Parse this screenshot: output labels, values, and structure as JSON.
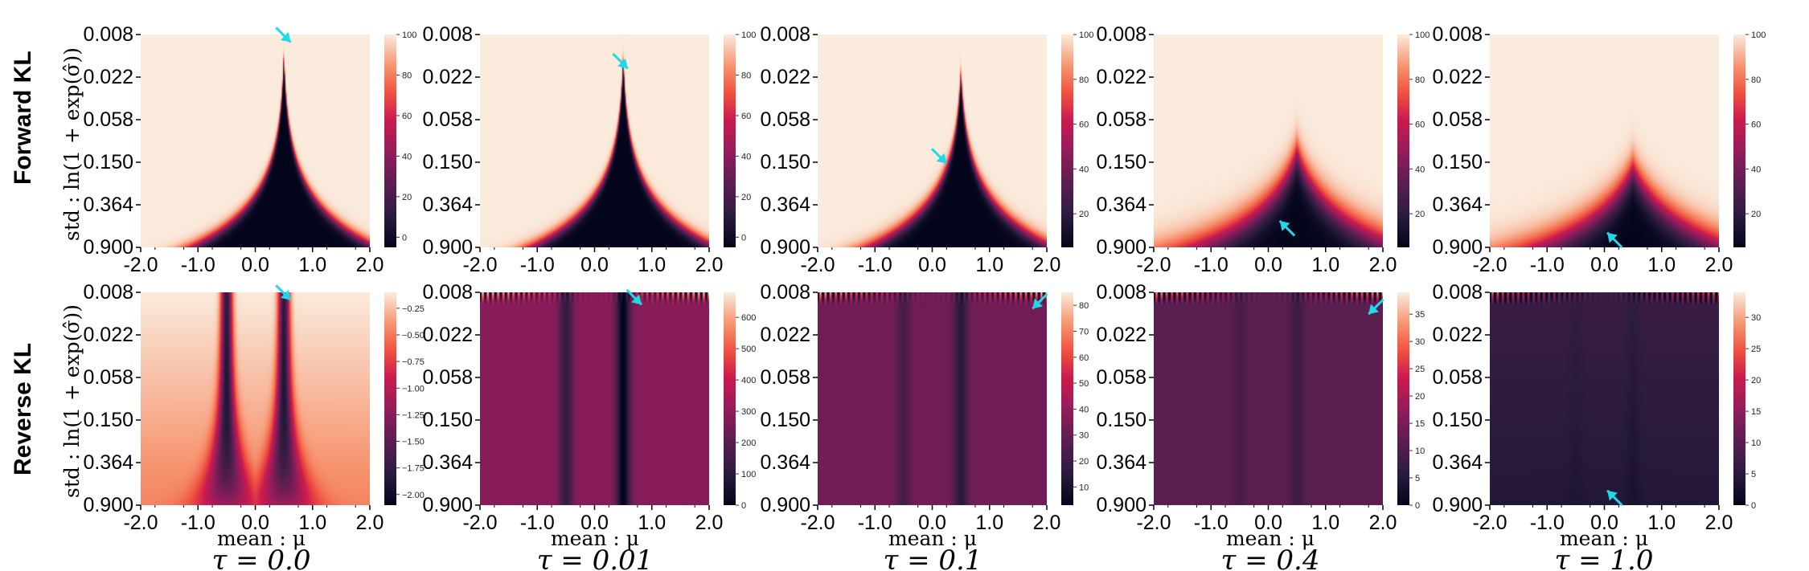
{
  "row_labels": [
    "Forward KL",
    "Reverse KL"
  ],
  "y_axis_label": "std : ln(1 + exp(σ̂))",
  "x_axis_label": "mean : μ",
  "tau_labels": [
    "τ = 0.0",
    "τ = 0.01",
    "τ = 0.1",
    "τ = 0.4",
    "τ = 1.0"
  ],
  "colors": {
    "arrow": "#21d8e8",
    "cmap_low": "#03051a",
    "cmap_high": "#faebdd"
  },
  "chart_data": {
    "type": "heatmap",
    "x_ticks": [
      "-2.0",
      "-1.0",
      "0.0",
      "1.0",
      "2.0"
    ],
    "x_range": [
      -2.0,
      2.0
    ],
    "y_ticks": [
      "0.008",
      "0.022",
      "0.058",
      "0.150",
      "0.364",
      "0.900"
    ],
    "y_range": [
      0.008,
      0.9
    ],
    "y_scale": "log",
    "panels": [
      {
        "row": 0,
        "col": 0,
        "kind": "forward",
        "tau": 0.0,
        "colorbar_ticks": [
          "0",
          "20",
          "40",
          "60",
          "80",
          "100"
        ],
        "colorbar_range": [
          -5,
          100
        ],
        "arrow": {
          "mu": 0.62,
          "std": 0.0095
        }
      },
      {
        "row": 0,
        "col": 1,
        "kind": "forward",
        "tau": 0.01,
        "colorbar_ticks": [
          "0",
          "20",
          "40",
          "60",
          "80",
          "100"
        ],
        "colorbar_range": [
          -5,
          100
        ],
        "arrow": {
          "mu": 0.58,
          "std": 0.017
        }
      },
      {
        "row": 0,
        "col": 2,
        "kind": "forward",
        "tau": 0.1,
        "colorbar_ticks": [
          "20",
          "40",
          "60",
          "80",
          "100"
        ],
        "colorbar_range": [
          5,
          100
        ],
        "arrow": {
          "mu": 0.25,
          "std": 0.14
        }
      },
      {
        "row": 0,
        "col": 3,
        "kind": "forward",
        "tau": 0.4,
        "colorbar_ticks": [
          "20",
          "40",
          "60",
          "80",
          "100"
        ],
        "colorbar_range": [
          5,
          100
        ],
        "arrow": {
          "mu": 0.2,
          "std": 0.5
        }
      },
      {
        "row": 0,
        "col": 4,
        "kind": "forward",
        "tau": 1.0,
        "colorbar_ticks": [
          "20",
          "40",
          "60",
          "80",
          "100"
        ],
        "colorbar_range": [
          5,
          100
        ],
        "arrow": {
          "mu": 0.05,
          "std": 0.65
        }
      },
      {
        "row": 1,
        "col": 0,
        "kind": "reverse0",
        "tau": 0.0,
        "colorbar_ticks": [
          "−2.00",
          "−1.75",
          "−1.50",
          "−1.25",
          "−1.00",
          "−0.75",
          "−0.50",
          "−0.25"
        ],
        "colorbar_range": [
          -2.1,
          -0.1
        ],
        "arrow": {
          "mu": 0.62,
          "std": 0.0095
        }
      },
      {
        "row": 1,
        "col": 1,
        "kind": "reverse",
        "tau": 0.01,
        "colorbar_ticks": [
          "0",
          "100",
          "200",
          "300",
          "400",
          "500",
          "600"
        ],
        "colorbar_range": [
          0,
          680
        ],
        "arrow": {
          "mu": 0.82,
          "std": 0.0105
        }
      },
      {
        "row": 1,
        "col": 2,
        "kind": "reverse",
        "tau": 0.1,
        "colorbar_ticks": [
          "10",
          "20",
          "30",
          "40",
          "50",
          "60",
          "70",
          "80"
        ],
        "colorbar_range": [
          3,
          85
        ],
        "arrow": {
          "mu": 1.75,
          "std": 0.0115
        }
      },
      {
        "row": 1,
        "col": 3,
        "kind": "reverse",
        "tau": 0.4,
        "colorbar_ticks": [
          "0",
          "5",
          "10",
          "15",
          "20",
          "25",
          "30",
          "35"
        ],
        "colorbar_range": [
          0,
          39
        ],
        "arrow": {
          "mu": 1.75,
          "std": 0.013
        }
      },
      {
        "row": 1,
        "col": 4,
        "kind": "reverse",
        "tau": 1.0,
        "colorbar_ticks": [
          "0",
          "5",
          "10",
          "15",
          "20",
          "25",
          "30"
        ],
        "colorbar_range": [
          0,
          34
        ],
        "arrow": {
          "mu": 0.05,
          "std": 0.65
        }
      }
    ]
  }
}
